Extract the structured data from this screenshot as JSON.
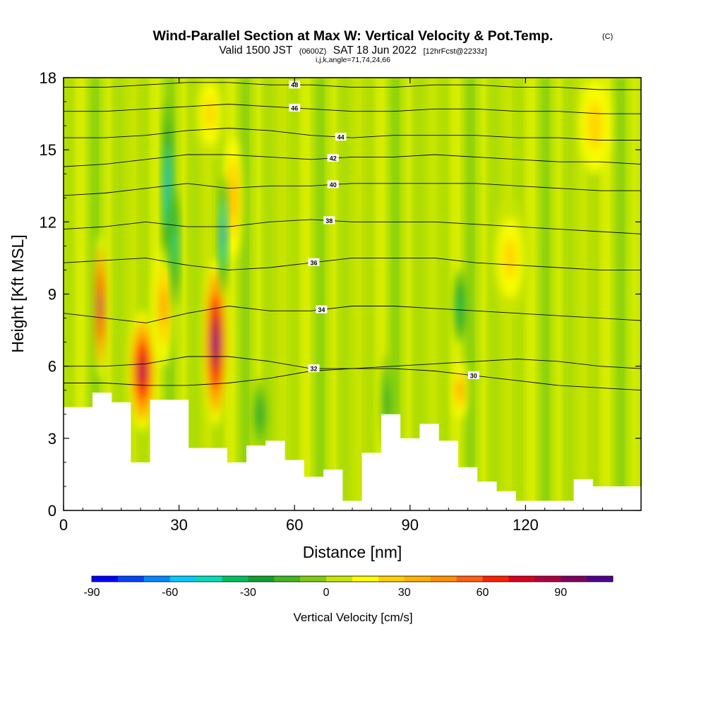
{
  "chart_data": {
    "type": "heatmap",
    "title": "Wind-Parallel Section at Max W: Vertical Velocity & Pot.Temp.",
    "title_suffix": "(C)",
    "subtitle": {
      "valid_label": "Valid 1500 JST",
      "utc_label": "(0600Z)",
      "date_label": "SAT 18 Jun 2022",
      "forecast_label": "[12hrFcst@2233z]"
    },
    "section_label": "i,j,k,angle=71,74,24,66",
    "xlabel": "Distance [nm]",
    "ylabel": "Height [Kft MSL]",
    "xlim": [
      0,
      150
    ],
    "ylim": [
      0,
      18
    ],
    "x_ticks": [
      0,
      30,
      60,
      90,
      120
    ],
    "y_ticks": [
      0,
      3,
      6,
      9,
      12,
      15,
      18
    ],
    "grid": false,
    "colorbar": {
      "label": "Vertical Velocity [cm/s]",
      "placement": "bottom",
      "range": [
        -90,
        110
      ],
      "tick_values": [
        -90,
        -60,
        -30,
        0,
        30,
        60,
        90
      ],
      "colors": [
        "#0000ff",
        "#0044ff",
        "#0088ff",
        "#00ccff",
        "#00ddbb",
        "#00c060",
        "#10a030",
        "#40b820",
        "#80cc10",
        "#c8e600",
        "#ffff00",
        "#ffd000",
        "#ffb000",
        "#ff9000",
        "#ff6010",
        "#ff2000",
        "#dd0020",
        "#b00040",
        "#800060",
        "#500090"
      ]
    },
    "terrain": {
      "x": [
        0,
        5,
        10,
        15,
        20,
        25,
        30,
        35,
        40,
        45,
        50,
        55,
        60,
        65,
        70,
        75,
        80,
        85,
        90,
        95,
        100,
        105,
        110,
        115,
        120,
        125,
        130,
        135,
        140,
        145,
        150
      ],
      "height": [
        4.3,
        4.3,
        4.9,
        4.5,
        2.0,
        4.6,
        4.6,
        2.6,
        2.6,
        2.0,
        2.7,
        2.9,
        2.1,
        1.4,
        1.7,
        0.4,
        2.4,
        4.0,
        3.0,
        3.6,
        2.9,
        1.8,
        1.2,
        0.8,
        0.4,
        0.4,
        0.4,
        1.3,
        1.0,
        1.0,
        1.0
      ]
    },
    "updrafts": [
      {
        "x": 9.5,
        "z": 8.5,
        "dx": 1.6,
        "dz": 3.0,
        "value": 90
      },
      {
        "x": 20.5,
        "z": 5.8,
        "dx": 3.5,
        "dz": 2.5,
        "value": 95
      },
      {
        "x": 26,
        "z": 8.5,
        "dx": 2.5,
        "dz": 2.5,
        "value": 40
      },
      {
        "x": 39.5,
        "z": 7.0,
        "dx": 3.0,
        "dz": 3.5,
        "value": 105
      },
      {
        "x": 44,
        "z": 13.0,
        "dx": 2.5,
        "dz": 2.5,
        "value": 35
      },
      {
        "x": 103,
        "z": 5.0,
        "dx": 2.0,
        "dz": 1.2,
        "value": 40
      },
      {
        "x": 116,
        "z": 10.5,
        "dx": 5.0,
        "dz": 2.5,
        "value": 25
      },
      {
        "x": 38,
        "z": 16.5,
        "dx": 4.0,
        "dz": 2.0,
        "value": 25
      },
      {
        "x": 138,
        "z": 16.0,
        "dx": 4.0,
        "dz": 2.0,
        "value": 20
      }
    ],
    "downdrafts": [
      {
        "x": 27,
        "z": 13.5,
        "dx": 1.2,
        "dz": 3.5,
        "value": -60
      },
      {
        "x": 29,
        "z": 11.0,
        "dx": 1.0,
        "dz": 2.5,
        "value": -50
      },
      {
        "x": 41.5,
        "z": 11.5,
        "dx": 1.0,
        "dz": 2.5,
        "value": -70
      },
      {
        "x": 103,
        "z": 8.5,
        "dx": 1.5,
        "dz": 1.5,
        "value": -40
      },
      {
        "x": 84,
        "z": 4.5,
        "dx": 1.5,
        "dz": 2.0,
        "value": -30
      },
      {
        "x": 51,
        "z": 4.0,
        "dx": 2.0,
        "dz": 1.5,
        "value": -25
      }
    ],
    "contours": [
      {
        "level": 30,
        "label": "30",
        "label_x": 106.5,
        "z": [
          5.3,
          5.3,
          5.2,
          5.2,
          5.3,
          5.5,
          5.8,
          5.9,
          5.9,
          5.8,
          5.6,
          5.4,
          5.2,
          5.1,
          5.0
        ]
      },
      {
        "level": 32,
        "label": "32",
        "label_x": 65,
        "z": [
          6.0,
          6.0,
          6.1,
          6.4,
          6.4,
          6.2,
          5.9,
          5.9,
          6.0,
          6.1,
          6.2,
          6.3,
          6.2,
          6.0,
          5.9
        ]
      },
      {
        "level": 34,
        "label": "34",
        "label_x": 67,
        "z": [
          8.2,
          8.0,
          7.8,
          8.2,
          8.5,
          8.3,
          8.3,
          8.5,
          8.5,
          8.4,
          8.3,
          8.2,
          8.1,
          8.0,
          7.9
        ]
      },
      {
        "level": 36,
        "label": "36",
        "label_x": 65,
        "z": [
          10.3,
          10.4,
          10.5,
          10.2,
          10.0,
          10.1,
          10.3,
          10.5,
          10.5,
          10.5,
          10.3,
          10.2,
          10.1,
          10.0,
          10.0
        ]
      },
      {
        "level": 38,
        "label": "38",
        "label_x": 69,
        "z": [
          11.7,
          11.8,
          12.0,
          11.8,
          11.8,
          12.0,
          12.1,
          12.0,
          12.0,
          12.0,
          11.9,
          11.8,
          11.7,
          11.6,
          11.5
        ]
      },
      {
        "level": 40,
        "label": "40",
        "label_x": 70,
        "z": [
          13.1,
          13.2,
          13.4,
          13.6,
          13.4,
          13.5,
          13.5,
          13.6,
          13.6,
          13.6,
          13.6,
          13.5,
          13.4,
          13.3,
          13.3
        ]
      },
      {
        "level": 42,
        "label": "42",
        "label_x": 70,
        "z": [
          14.3,
          14.4,
          14.6,
          14.8,
          14.8,
          14.7,
          14.6,
          14.7,
          14.7,
          14.8,
          14.7,
          14.6,
          14.5,
          14.5,
          14.4
        ]
      },
      {
        "level": 44,
        "label": "44",
        "label_x": 72,
        "z": [
          15.5,
          15.5,
          15.6,
          15.8,
          15.9,
          15.8,
          15.6,
          15.5,
          15.6,
          15.6,
          15.6,
          15.5,
          15.5,
          15.4,
          15.4
        ]
      },
      {
        "level": 46,
        "label": "46",
        "label_x": 60,
        "z": [
          16.6,
          16.6,
          16.7,
          16.8,
          16.9,
          16.8,
          16.7,
          16.6,
          16.6,
          16.7,
          16.7,
          16.6,
          16.6,
          16.5,
          16.5
        ]
      },
      {
        "level": 48,
        "label": "48",
        "label_x": 60,
        "z": [
          17.6,
          17.6,
          17.7,
          17.8,
          17.8,
          17.7,
          17.7,
          17.6,
          17.6,
          17.7,
          17.7,
          17.6,
          17.6,
          17.5,
          17.5
        ]
      }
    ]
  }
}
